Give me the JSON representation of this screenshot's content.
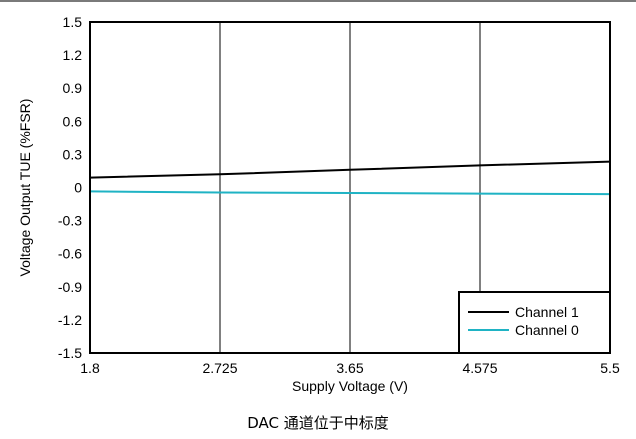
{
  "caption": "DAC 通道位于中标度",
  "chart_data": {
    "type": "line",
    "title": "",
    "xlabel": "Supply Voltage (V)",
    "ylabel": "Voltage Output TUE (%FSR)",
    "xlim": [
      1.8,
      5.5
    ],
    "ylim": [
      -1.5,
      1.5
    ],
    "x_ticks": [
      "1.8",
      "2.725",
      "3.65",
      "4.575",
      "5.5"
    ],
    "x_tick_values": [
      1.8,
      2.725,
      3.65,
      4.575,
      5.5
    ],
    "y_ticks": [
      "1.5",
      "1.2",
      "0.9",
      "0.6",
      "0.3",
      "0",
      "-0.3",
      "-0.6",
      "-0.9",
      "-1.2",
      "-1.5"
    ],
    "y_tick_values": [
      1.5,
      1.2,
      0.9,
      0.6,
      0.3,
      0,
      -0.3,
      -0.6,
      -0.9,
      -1.2,
      -1.5
    ],
    "grid": "vertical-major",
    "legend_position": "bottom-right",
    "series": [
      {
        "name": "Channel 1",
        "color": "#000000",
        "x": [
          1.8,
          2.725,
          3.65,
          4.575,
          5.5
        ],
        "y": [
          0.09,
          0.12,
          0.16,
          0.2,
          0.235
        ]
      },
      {
        "name": "Channel 0",
        "color": "#1fb3c4",
        "x": [
          1.8,
          2.725,
          3.65,
          4.575,
          5.5
        ],
        "y": [
          -0.035,
          -0.045,
          -0.05,
          -0.055,
          -0.06
        ]
      }
    ]
  }
}
